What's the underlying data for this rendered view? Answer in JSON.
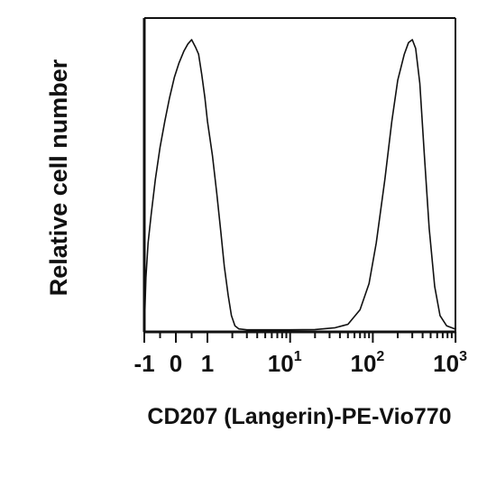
{
  "chart_data": {
    "type": "line",
    "title": "",
    "xlabel": "CD207 (Langerin)-PE-Vio770",
    "ylabel": "Relative cell number",
    "x_scale": "biexponential",
    "xlim": [
      -1,
      1000
    ],
    "ylim": [
      0,
      1
    ],
    "grid": false,
    "legend": "none",
    "x_ticks": [
      {
        "value": -1,
        "base": "-1",
        "exp": ""
      },
      {
        "value": 0,
        "base": "0",
        "exp": ""
      },
      {
        "value": 1,
        "base": "1",
        "exp": ""
      },
      {
        "value": 10,
        "base": "10",
        "exp": "1"
      },
      {
        "value": 100,
        "base": "10",
        "exp": "2"
      },
      {
        "value": 1000,
        "base": "10",
        "exp": "3"
      }
    ],
    "series": [
      {
        "color": "#111111",
        "points": [
          [
            -1.0,
            0.0
          ],
          [
            -0.95,
            0.18
          ],
          [
            -0.88,
            0.3
          ],
          [
            -0.78,
            0.4
          ],
          [
            -0.65,
            0.52
          ],
          [
            -0.5,
            0.63
          ],
          [
            -0.35,
            0.72
          ],
          [
            -0.2,
            0.8
          ],
          [
            -0.05,
            0.87
          ],
          [
            0.1,
            0.92
          ],
          [
            0.25,
            0.96
          ],
          [
            0.38,
            0.985
          ],
          [
            0.5,
            1.0
          ],
          [
            0.62,
            0.975
          ],
          [
            0.72,
            0.95
          ],
          [
            0.82,
            0.88
          ],
          [
            0.92,
            0.8
          ],
          [
            1.0,
            0.72
          ],
          [
            1.15,
            0.6
          ],
          [
            1.3,
            0.47
          ],
          [
            1.45,
            0.34
          ],
          [
            1.6,
            0.22
          ],
          [
            1.78,
            0.12
          ],
          [
            1.95,
            0.05
          ],
          [
            2.15,
            0.015
          ],
          [
            2.4,
            0.004
          ],
          [
            3.0,
            0.001
          ],
          [
            5.0,
            0.001
          ],
          [
            10,
            0.001
          ],
          [
            20,
            0.002
          ],
          [
            35,
            0.008
          ],
          [
            50,
            0.02
          ],
          [
            70,
            0.07
          ],
          [
            90,
            0.16
          ],
          [
            110,
            0.3
          ],
          [
            140,
            0.52
          ],
          [
            170,
            0.72
          ],
          [
            200,
            0.86
          ],
          [
            240,
            0.95
          ],
          [
            270,
            0.99
          ],
          [
            300,
            1.0
          ],
          [
            330,
            0.97
          ],
          [
            370,
            0.85
          ],
          [
            420,
            0.6
          ],
          [
            480,
            0.35
          ],
          [
            560,
            0.15
          ],
          [
            650,
            0.05
          ],
          [
            780,
            0.015
          ],
          [
            1000,
            0.003
          ]
        ]
      }
    ]
  }
}
